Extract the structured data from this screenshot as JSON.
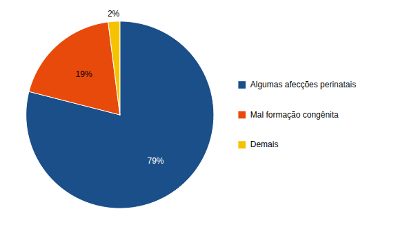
{
  "chart_data": {
    "type": "pie",
    "categories": [
      "Algumas afecções perinatais",
      "Mal formação congênita",
      "Demais"
    ],
    "values": [
      79,
      19,
      2
    ],
    "value_labels": [
      "79%",
      "19%",
      "2%"
    ],
    "colors": [
      "#1A4F8A",
      "#E84A0C",
      "#F5C200"
    ],
    "data_labels": true,
    "legend": "right"
  }
}
